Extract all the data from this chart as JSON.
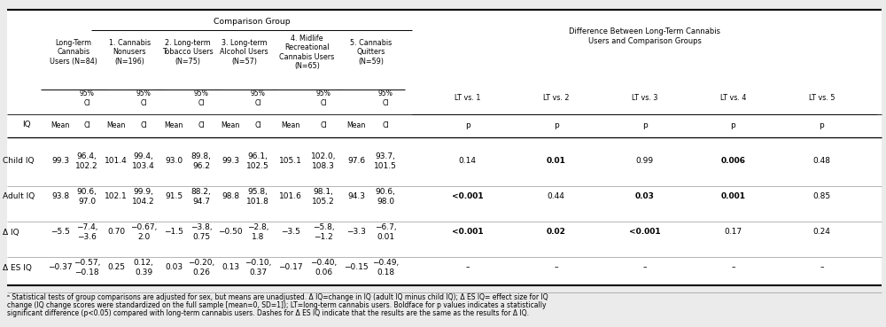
{
  "title_comparison": "Comparison Group",
  "diff_header": "Difference Between Long-Term Cannabis\nUsers and Comparison Groups",
  "group_headers": [
    "Long-Term\nCannabis\nUsers (N=84)",
    "1. Cannabis\nNonusers\n(N=196)",
    "2. Long-term\nTobacco Users\n(N=75)",
    "3. Long-term\nAlcohol Users\n(N=57)",
    "4. Midlife\nRecreational\nCannabis Users\n(N=65)",
    "5. Cannabis\nQuitters\n(N=59)"
  ],
  "lt_vs_labels": [
    "LT vs. 1",
    "LT vs. 2",
    "LT vs. 3",
    "LT vs. 4",
    "LT vs. 5"
  ],
  "rows": [
    {
      "label": "Child IQ",
      "data": [
        "99.3",
        "96.4,\n102.2",
        "101.4",
        "99.4,\n103.4",
        "93.0",
        "89.8,\n96.2",
        "99.3",
        "96.1,\n102.5",
        "105.1",
        "102.0,\n108.3",
        "97.6",
        "93.7,\n101.5",
        "0.14",
        "0.01",
        "0.99",
        "0.006",
        "0.48"
      ],
      "bold": [
        false,
        false,
        false,
        false,
        false,
        false,
        false,
        false,
        false,
        false,
        false,
        false,
        false,
        true,
        false,
        true,
        false
      ]
    },
    {
      "label": "Adult IQ",
      "data": [
        "93.8",
        "90.6,\n97.0",
        "102.1",
        "99.9,\n104.2",
        "91.5",
        "88.2,\n94.7",
        "98.8",
        "95.8,\n101.8",
        "101.6",
        "98.1,\n105.2",
        "94.3",
        "90.6,\n98.0",
        "<0.001",
        "0.44",
        "0.03",
        "0.001",
        "0.85"
      ],
      "bold": [
        false,
        false,
        false,
        false,
        false,
        false,
        false,
        false,
        false,
        false,
        false,
        false,
        true,
        false,
        true,
        true,
        false
      ]
    },
    {
      "label": "Δ IQ",
      "data": [
        "−5.5",
        "−7.4,\n−3.6",
        "0.70",
        "−0.67,\n2.0",
        "−1.5",
        "−3.8,\n0.75",
        "−0.50",
        "−2.8,\n1.8",
        "−3.5",
        "−5.8,\n−1.2",
        "−3.3",
        "−6.7,\n0.01",
        "<0.001",
        "0.02",
        "<0.001",
        "0.17",
        "0.24"
      ],
      "bold": [
        false,
        false,
        false,
        false,
        false,
        false,
        false,
        false,
        false,
        false,
        false,
        false,
        true,
        true,
        true,
        false,
        false
      ]
    },
    {
      "label": "Δ ES IQ",
      "data": [
        "−0.37",
        "−0.57,\n−0.18",
        "0.25",
        "0.12,\n0.39",
        "0.03",
        "−0.20,\n0.26",
        "0.13",
        "−0.10,\n0.37",
        "−0.17",
        "−0.40,\n0.06",
        "−0.15",
        "−0.49,\n0.18",
        "–",
        "–",
        "–",
        "–",
        "–"
      ],
      "bold": [
        false,
        false,
        false,
        false,
        false,
        false,
        false,
        false,
        false,
        false,
        false,
        false,
        false,
        false,
        false,
        false,
        false
      ]
    }
  ],
  "footnote_lines": [
    "ᵃ Statistical tests of group comparisons are adjusted for sex, but means are unadjusted. Δ IQ=change in IQ (adult IQ minus child IQ); Δ ES IQ= effect size for IQ",
    "change (IQ change scores were standardized on the full sample [mean=0, SD=1]); LT=long-term cannabis users. Boldface for p values indicates a statistically",
    "significant difference (p<0.05) compared with long-term cannabis users. Dashes for Δ ES IQ indicate that the results are the same as the results for Δ IQ."
  ],
  "bg_color": "#ebebeb",
  "table_bg": "#ffffff"
}
